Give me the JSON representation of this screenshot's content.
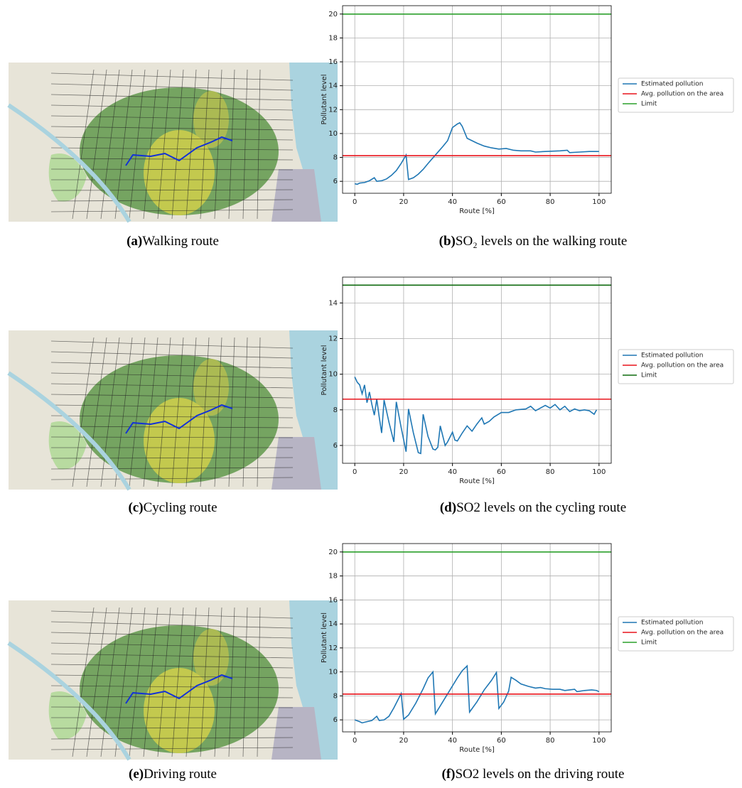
{
  "chart_data": [
    {
      "type": "line",
      "xlabel": "Route [%]",
      "ylabel": "Pollutant level",
      "xlim": [
        -5,
        105
      ],
      "xticks": [
        0,
        20,
        40,
        60,
        80,
        100
      ],
      "ylim": [
        5,
        20.7
      ],
      "yticks": [
        6,
        8,
        10,
        12,
        14,
        16,
        18,
        20
      ],
      "grid": true,
      "series": [
        {
          "name": "Estimated pollution",
          "color": "#1f77b4",
          "x": [
            0,
            1,
            2,
            4,
            6,
            8,
            9,
            11,
            13,
            15,
            17,
            19,
            21,
            22,
            24,
            26,
            28,
            30,
            33,
            36,
            38,
            40,
            42,
            43,
            44,
            46,
            48,
            50,
            53,
            56,
            59,
            62,
            65,
            68,
            72,
            74,
            78,
            84,
            87,
            88,
            92,
            96,
            100
          ],
          "values": [
            5.8,
            5.75,
            5.85,
            5.9,
            6.05,
            6.3,
            6.0,
            6.05,
            6.2,
            6.5,
            6.9,
            7.5,
            8.2,
            6.15,
            6.3,
            6.6,
            7.0,
            7.5,
            8.2,
            8.9,
            9.4,
            10.5,
            10.8,
            10.9,
            10.6,
            9.6,
            9.4,
            9.2,
            8.95,
            8.8,
            8.7,
            8.75,
            8.6,
            8.55,
            8.55,
            8.45,
            8.5,
            8.55,
            8.6,
            8.4,
            8.45,
            8.5,
            8.5
          ]
        }
      ],
      "hlines": [
        {
          "name": "Avg. pollution on the area",
          "color": "#e8141c",
          "value": 8.15
        },
        {
          "name": "Limit",
          "color": "#2ca02c",
          "value": 20
        }
      ]
    },
    {
      "type": "line",
      "xlabel": "Route [%]",
      "ylabel": "Pollutant level",
      "xlim": [
        -5,
        105
      ],
      "xticks": [
        0,
        20,
        40,
        60,
        80,
        100
      ],
      "ylim": [
        5,
        15.45
      ],
      "yticks": [
        6,
        8,
        10,
        12,
        14
      ],
      "grid": true,
      "series": [
        {
          "name": "Estimated pollution",
          "color": "#1f77b4",
          "x": [
            0,
            1,
            2,
            3,
            4,
            5,
            6,
            7,
            8,
            9,
            10,
            11,
            12,
            14,
            16,
            17,
            19,
            21,
            22,
            24,
            26,
            27,
            28,
            30,
            32,
            33,
            34,
            35,
            37,
            38,
            40,
            41,
            42,
            44,
            46,
            48,
            50,
            52,
            53,
            55,
            57,
            60,
            63,
            66,
            70,
            72,
            74,
            78,
            80,
            82,
            84,
            86,
            88,
            90,
            92,
            94,
            96,
            98,
            99
          ],
          "values": [
            9.85,
            9.55,
            9.4,
            8.9,
            9.4,
            8.4,
            9.0,
            8.3,
            7.7,
            8.6,
            7.6,
            6.7,
            8.55,
            7.3,
            6.2,
            8.45,
            7.0,
            5.65,
            8.05,
            6.7,
            5.6,
            5.55,
            7.75,
            6.5,
            5.8,
            5.75,
            5.9,
            7.1,
            6.0,
            6.2,
            6.75,
            6.3,
            6.25,
            6.7,
            7.1,
            6.8,
            7.2,
            7.55,
            7.2,
            7.35,
            7.6,
            7.85,
            7.85,
            8.0,
            8.05,
            8.2,
            7.95,
            8.25,
            8.1,
            8.3,
            8.0,
            8.2,
            7.9,
            8.05,
            7.95,
            8.0,
            7.95,
            7.75,
            8.0
          ]
        }
      ],
      "hlines": [
        {
          "name": "Avg. pollution on the area",
          "color": "#e8141c",
          "value": 8.6
        },
        {
          "name": "Limit",
          "color": "#0f6b0f",
          "value": 15
        }
      ]
    },
    {
      "type": "line",
      "xlabel": "Route [%]",
      "ylabel": "Pollutant level",
      "xlim": [
        -5,
        105
      ],
      "xticks": [
        0,
        20,
        40,
        60,
        80,
        100
      ],
      "ylim": [
        5,
        20.7
      ],
      "yticks": [
        6,
        8,
        10,
        12,
        14,
        16,
        18,
        20
      ],
      "grid": true,
      "series": [
        {
          "name": "Estimated pollution",
          "color": "#1f77b4",
          "x": [
            0,
            2,
            3,
            5,
            7,
            9,
            10,
            12,
            14,
            16,
            18,
            19,
            20,
            22,
            25,
            28,
            30,
            32,
            33,
            36,
            39,
            42,
            44,
            46,
            47,
            50,
            53,
            56,
            58,
            59,
            61,
            63,
            64,
            66,
            68,
            71,
            74,
            76,
            78,
            81,
            84,
            86,
            88,
            90,
            91,
            94,
            97,
            99,
            100
          ],
          "values": [
            6.0,
            5.85,
            5.75,
            5.85,
            5.95,
            6.3,
            5.95,
            6.0,
            6.3,
            7.0,
            7.8,
            8.2,
            6.05,
            6.4,
            7.4,
            8.6,
            9.5,
            10.0,
            6.5,
            7.5,
            8.5,
            9.5,
            10.1,
            10.5,
            6.65,
            7.5,
            8.5,
            9.3,
            9.95,
            6.95,
            7.5,
            8.4,
            9.55,
            9.3,
            9.0,
            8.8,
            8.65,
            8.7,
            8.6,
            8.55,
            8.55,
            8.45,
            8.5,
            8.55,
            8.35,
            8.45,
            8.5,
            8.45,
            8.35
          ]
        }
      ],
      "hlines": [
        {
          "name": "Avg. pollution on the area",
          "color": "#e8141c",
          "value": 8.15
        },
        {
          "name": "Limit",
          "color": "#2ca02c",
          "value": 20
        }
      ]
    }
  ],
  "captions": [
    {
      "label": "(a)",
      "text": "Walking route"
    },
    {
      "label": "(b)",
      "text": "SO₂ levels on the walking route"
    },
    {
      "label": "(c)",
      "text": "Cycling route"
    },
    {
      "label": "(d)",
      "text": "SO2 levels on the cycling route"
    },
    {
      "label": "(e)",
      "text": "Driving route"
    },
    {
      "label": "(f)",
      "text": "SO2 levels on the driving route"
    }
  ]
}
